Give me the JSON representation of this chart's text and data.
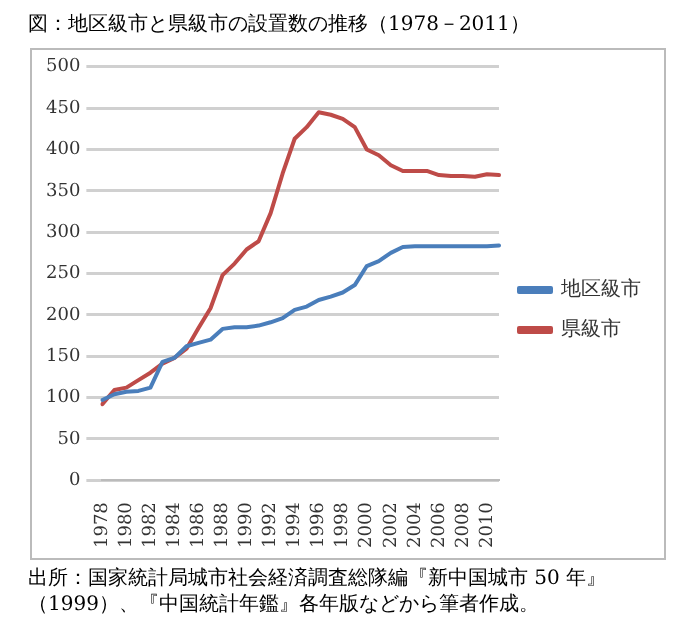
{
  "chart_data": {
    "type": "line",
    "title": "図：地区級市と県級市の設置数の推移（1978－2011）",
    "categories": [
      "1978",
      null,
      "1980",
      null,
      "1982",
      null,
      "1984",
      null,
      "1986",
      null,
      "1988",
      null,
      "1990",
      null,
      "1992",
      null,
      "1994",
      null,
      "1996",
      null,
      "1998",
      null,
      "2000",
      null,
      "2002",
      null,
      "2004",
      null,
      "2006",
      null,
      "2008",
      null,
      "2010",
      null
    ],
    "series": [
      {
        "name": "地区級市",
        "color": "#4a7ebb",
        "values": [
          97,
          104,
          107,
          108,
          112,
          143,
          148,
          162,
          166,
          170,
          183,
          185,
          185,
          187,
          191,
          196,
          206,
          210,
          218,
          222,
          227,
          236,
          259,
          265,
          275,
          282,
          283,
          283,
          283,
          283,
          283,
          283,
          283,
          284
        ]
      },
      {
        "name": "県級市",
        "color": "#be4b48",
        "values": [
          92,
          109,
          112,
          121,
          130,
          141,
          148,
          159,
          184,
          208,
          248,
          262,
          279,
          289,
          323,
          371,
          413,
          427,
          445,
          442,
          437,
          427,
          400,
          393,
          381,
          374,
          374,
          374,
          369,
          368,
          368,
          367,
          370,
          369
        ]
      }
    ],
    "ylim": [
      0,
      500
    ],
    "yticks": [
      0,
      50,
      100,
      150,
      200,
      250,
      300,
      350,
      400,
      450,
      500
    ],
    "grid": "y",
    "legend": "right",
    "marker": "none",
    "line_style": "solid",
    "annotations": [
      "出所：国家統計局城市社会経済調査総隊編『新中国城市 50 年』（1999）、『中国統計年鑑』各年版などから筆者作成。"
    ]
  }
}
